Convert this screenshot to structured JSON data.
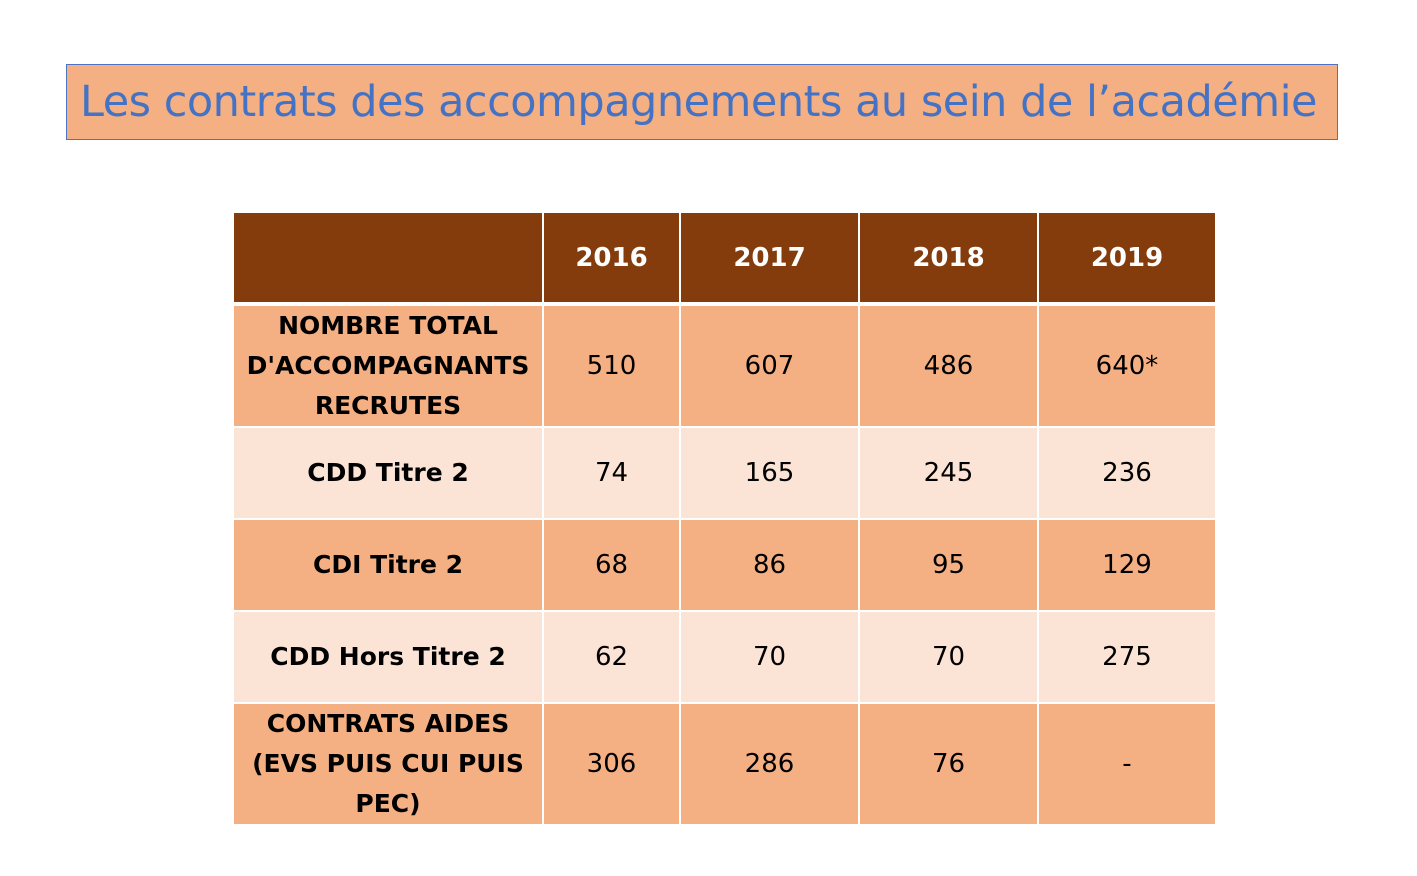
{
  "title": "Les contrats des accompagnements au sein de l’académie",
  "table": {
    "headers": [
      "",
      "2016",
      "2017",
      "2018",
      "2019"
    ],
    "rows": [
      {
        "label": "NOMBRE TOTAL D'ACCOMPAGNANTS RECRUTES",
        "values": [
          "510",
          "607",
          "486",
          "640*"
        ]
      },
      {
        "label": "CDD Titre 2",
        "values": [
          "74",
          "165",
          "245",
          "236"
        ]
      },
      {
        "label": "CDI Titre 2",
        "values": [
          "68",
          "86",
          "95",
          "129"
        ]
      },
      {
        "label": "CDD Hors Titre 2",
        "values": [
          "62",
          "70",
          "70",
          "275"
        ]
      },
      {
        "label": "CONTRATS AIDES (EVS PUIS CUI PUIS PEC)",
        "values": [
          "306",
          "286",
          "76",
          "-"
        ]
      }
    ]
  },
  "colors": {
    "title_fill": "#f4b083",
    "title_text": "#4472c4",
    "header_fill": "#843c0c",
    "row_dark": "#f4b083",
    "row_light": "#fbe4d5"
  }
}
